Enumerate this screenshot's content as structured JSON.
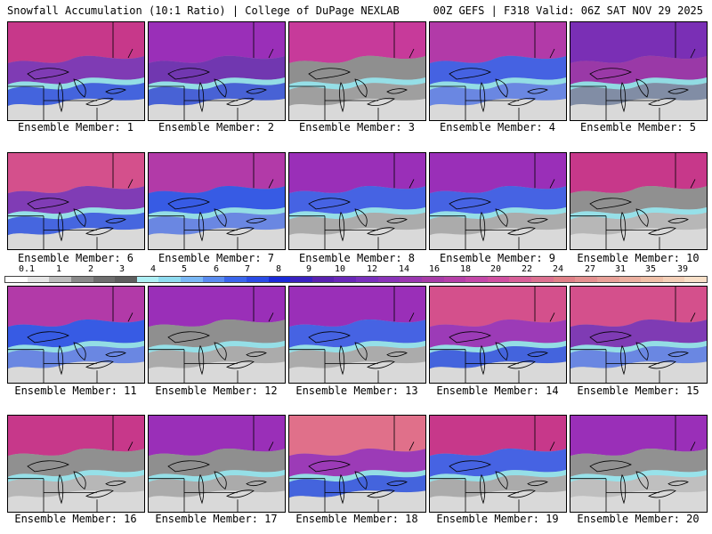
{
  "header": {
    "title_left": "Snowfall Accumulation (10:1 Ratio) | College of DuPage NEXLAB",
    "title_right": "00Z GEFS | F318 Valid: 06Z SAT NOV 29 2025"
  },
  "member_label_prefix": "Ensemble Member: ",
  "members": [
    {
      "id": "1",
      "label": "Ensemble Member: 1",
      "north_color": "#c7388a",
      "mid_color": "#7a2fb5",
      "south_color": "#2a52ea",
      "edge_color": "#8fe6f0",
      "land_color": "#a9a9a9"
    },
    {
      "id": "2",
      "label": "Ensemble Member: 2",
      "north_color": "#9a2fb8",
      "mid_color": "#6a2ab0",
      "south_color": "#3050e0",
      "edge_color": "#8fe6f0",
      "land_color": "#a9a9a9"
    },
    {
      "id": "3",
      "label": "Ensemble Member: 3",
      "north_color": "#c73a9a",
      "mid_color": "#8b8b8b",
      "south_color": "#9a9a9a",
      "edge_color": "#8fe6f0",
      "land_color": "#b5b5b5"
    },
    {
      "id": "4",
      "label": "Ensemble Member: 4",
      "north_color": "#b23aa8",
      "mid_color": "#3a5ae8",
      "south_color": "#5a7ef0",
      "edge_color": "#8fe6f0",
      "land_color": "#a9a9a9"
    },
    {
      "id": "5",
      "label": "Ensemble Member: 5",
      "north_color": "#7a2fb5",
      "mid_color": "#9a2fa8",
      "south_color": "#7a8aa8",
      "edge_color": "#8fe6f0",
      "land_color": "#9a9a9a"
    },
    {
      "id": "6",
      "label": "Ensemble Member: 6",
      "north_color": "#d4508c",
      "mid_color": "#7a2fb5",
      "south_color": "#2a52ea",
      "edge_color": "#8fe6f0",
      "land_color": "#b5b5b5"
    },
    {
      "id": "7",
      "label": "Ensemble Member: 7",
      "north_color": "#b23aa8",
      "mid_color": "#2a52ea",
      "south_color": "#5a7ef0",
      "edge_color": "#8fe6f0",
      "land_color": "#a9a9a9"
    },
    {
      "id": "8",
      "label": "Ensemble Member: 8",
      "north_color": "#9a2fb8",
      "mid_color": "#3a5ae8",
      "south_color": "#a9a9a9",
      "edge_color": "#8fe6f0",
      "land_color": "#b5b5b5"
    },
    {
      "id": "9",
      "label": "Ensemble Member: 9",
      "north_color": "#9a2fb8",
      "mid_color": "#3a5ae8",
      "south_color": "#a9a9a9",
      "edge_color": "#8fe6f0",
      "land_color": "#b5b5b5"
    },
    {
      "id": "10",
      "label": "Ensemble Member: 10",
      "north_color": "#c7388a",
      "mid_color": "#8b8b8b",
      "south_color": "#b5b5b5",
      "edge_color": "#8fe6f0",
      "land_color": "#bdbdbd"
    },
    {
      "id": "11",
      "label": "Ensemble Member: 11",
      "north_color": "#b23aa8",
      "mid_color": "#2a52ea",
      "south_color": "#5a7ef0",
      "edge_color": "#8fe6f0",
      "land_color": "#a9a9a9"
    },
    {
      "id": "12",
      "label": "Ensemble Member: 12",
      "north_color": "#9a2fb8",
      "mid_color": "#8b8b8b",
      "south_color": "#a9a9a9",
      "edge_color": "#8fe6f0",
      "land_color": "#b5b5b5"
    },
    {
      "id": "13",
      "label": "Ensemble Member: 13",
      "north_color": "#9a2fb8",
      "mid_color": "#3a5ae8",
      "south_color": "#a9a9a9",
      "edge_color": "#8fe6f0",
      "land_color": "#b5b5b5"
    },
    {
      "id": "14",
      "label": "Ensemble Member: 14",
      "north_color": "#d4508c",
      "mid_color": "#9a2fb8",
      "south_color": "#2a52ea",
      "edge_color": "#8fe6f0",
      "land_color": "#a9a9a9"
    },
    {
      "id": "15",
      "label": "Ensemble Member: 15",
      "north_color": "#d4508c",
      "mid_color": "#7a2fb5",
      "south_color": "#5a7ef0",
      "edge_color": "#8fe6f0",
      "land_color": "#a9a9a9"
    },
    {
      "id": "16",
      "label": "Ensemble Member: 16",
      "north_color": "#c7388a",
      "mid_color": "#8b8b8b",
      "south_color": "#b5b5b5",
      "edge_color": "#8fe6f0",
      "land_color": "#bdbdbd"
    },
    {
      "id": "17",
      "label": "Ensemble Member: 17",
      "north_color": "#9a2fb8",
      "mid_color": "#8b8b8b",
      "south_color": "#a9a9a9",
      "edge_color": "#8fe6f0",
      "land_color": "#b5b5b5"
    },
    {
      "id": "18",
      "label": "Ensemble Member: 18",
      "north_color": "#e0708a",
      "mid_color": "#9a2fb8",
      "south_color": "#2a52ea",
      "edge_color": "#8fe6f0",
      "land_color": "#a9a9a9"
    },
    {
      "id": "19",
      "label": "Ensemble Member: 19",
      "north_color": "#c7388a",
      "mid_color": "#3a5ae8",
      "south_color": "#a9a9a9",
      "edge_color": "#8fe6f0",
      "land_color": "#b5b5b5"
    },
    {
      "id": "20",
      "label": "Ensemble Member: 20",
      "north_color": "#9a2fb8",
      "mid_color": "#8b8b8b",
      "south_color": "#bdbdbd",
      "edge_color": "#8fe6f0",
      "land_color": "#c5c5c5"
    }
  ],
  "colorbar": {
    "labels": [
      "0.1",
      "1",
      "2",
      "3",
      "4",
      "5",
      "6",
      "7",
      "8",
      "9",
      "10",
      "12",
      "14",
      "16",
      "18",
      "20",
      "22",
      "24",
      "27",
      "31",
      "35",
      "39"
    ],
    "colors": [
      "#ffffff",
      "#e6e6e6",
      "#bdbdbd",
      "#8a8a8a",
      "#6e6e6e",
      "#5e5e5e",
      "#aef0f5",
      "#8fdcf0",
      "#7ab8f5",
      "#5a8cf0",
      "#3a66ec",
      "#2a4ce6",
      "#1a2ad8",
      "#3a22c0",
      "#5a22b0",
      "#6a28b8",
      "#7a30bc",
      "#8a34b8",
      "#9a38b0",
      "#a83ca8",
      "#b640a8",
      "#c448a8",
      "#d050a0",
      "#d86098",
      "#dc7090",
      "#e08088",
      "#e49090",
      "#e8a098",
      "#ecb0a0",
      "#f0c0a8",
      "#f4d0b8",
      "#f8e0c8"
    ]
  }
}
